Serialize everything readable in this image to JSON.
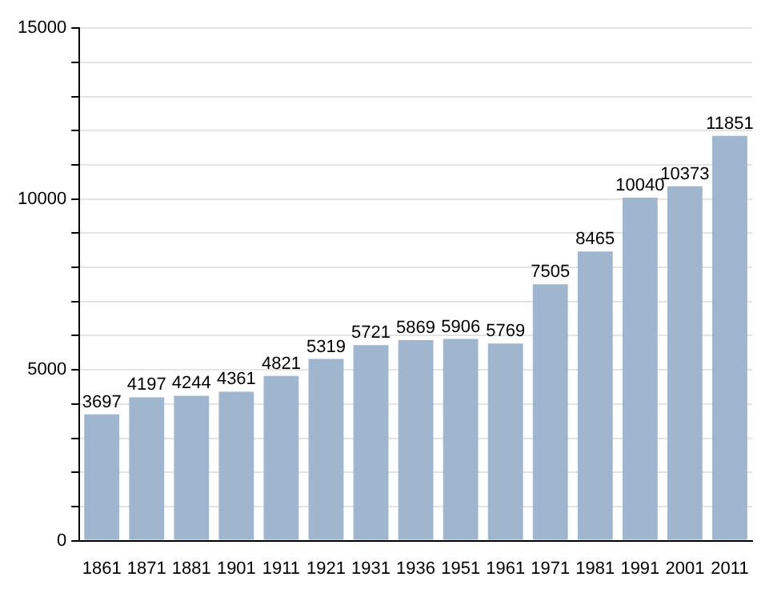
{
  "chart_data": {
    "type": "bar",
    "categories": [
      "1861",
      "1871",
      "1881",
      "1901",
      "1911",
      "1921",
      "1931",
      "1936",
      "1951",
      "1961",
      "1971",
      "1981",
      "1991",
      "2001",
      "2011"
    ],
    "values": [
      3697,
      4197,
      4244,
      4361,
      4821,
      5319,
      5721,
      5869,
      5906,
      5769,
      7505,
      8465,
      10040,
      10373,
      11851
    ],
    "color": "#a0b6cf",
    "data_labels": true,
    "grid": "y",
    "ylim": [
      0,
      15000
    ],
    "yticks": [
      0,
      {
        "value": 1000,
        "label": null
      },
      {
        "value": 2000,
        "label": null
      },
      {
        "value": 3000,
        "label": null
      },
      {
        "value": 4000,
        "label": null
      },
      5000,
      {
        "value": 6000,
        "label": null
      },
      {
        "value": 7000,
        "label": null
      },
      {
        "value": 8000,
        "label": null
      },
      {
        "value": 9000,
        "label": null
      },
      10000,
      {
        "value": 11000,
        "label": null
      },
      {
        "value": 12000,
        "label": null
      },
      {
        "value": 13000,
        "label": null
      },
      {
        "value": 14000,
        "label": null
      },
      15000
    ]
  }
}
